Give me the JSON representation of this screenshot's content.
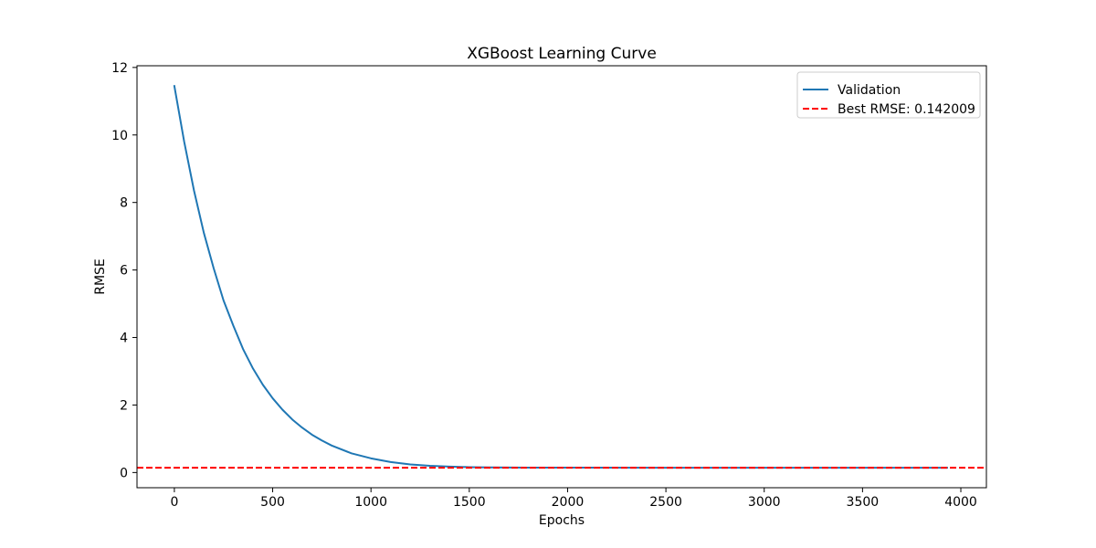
{
  "chart_data": {
    "type": "line",
    "title": "XGBoost Learning Curve",
    "xlabel": "Epochs",
    "ylabel": "RMSE",
    "xlim": [
      -190,
      4130
    ],
    "ylim": [
      -0.45,
      12.05
    ],
    "xticks": [
      0,
      500,
      1000,
      1500,
      2000,
      2500,
      3000,
      3500,
      4000
    ],
    "yticks": [
      0,
      2,
      4,
      6,
      8,
      10,
      12
    ],
    "grid": false,
    "legend_position": "top-right",
    "series": [
      {
        "name": "Validation",
        "color": "#1f77b4",
        "style": "solid",
        "x": [
          0,
          50,
          100,
          150,
          200,
          250,
          300,
          350,
          400,
          450,
          500,
          550,
          600,
          650,
          700,
          750,
          800,
          900,
          1000,
          1100,
          1200,
          1300,
          1400,
          1500,
          1600,
          1800,
          2000,
          2500,
          3000,
          3500,
          3930
        ],
        "y": [
          11.45,
          9.8,
          8.35,
          7.1,
          6.05,
          5.1,
          4.35,
          3.65,
          3.08,
          2.6,
          2.2,
          1.86,
          1.57,
          1.33,
          1.12,
          0.95,
          0.8,
          0.57,
          0.42,
          0.31,
          0.24,
          0.2,
          0.175,
          0.16,
          0.152,
          0.146,
          0.144,
          0.143,
          0.1425,
          0.1421,
          0.142009
        ]
      }
    ],
    "hlines": [
      {
        "name": "Best RMSE: 0.142009",
        "y": 0.142009,
        "color": "#ff0000",
        "style": "dashed"
      }
    ]
  }
}
